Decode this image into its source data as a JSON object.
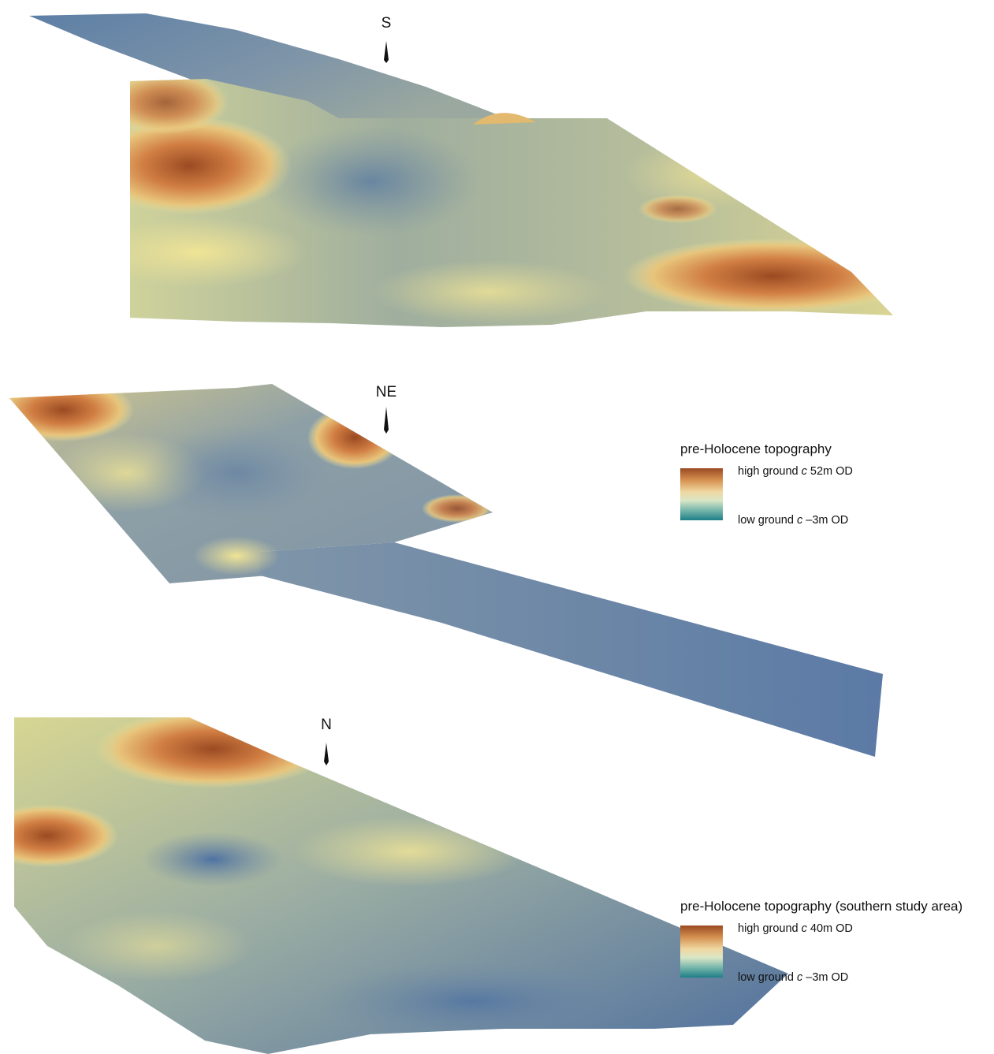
{
  "panels": [
    {
      "id": "panel-top",
      "orientation_label": "S"
    },
    {
      "id": "panel-middle",
      "orientation_label": "NE"
    },
    {
      "id": "panel-bottom",
      "orientation_label": "N"
    }
  ],
  "legends": [
    {
      "title": "pre-Holocene topography",
      "high_prefix": "high ground",
      "high_italic": "c",
      "high_value": "52m OD",
      "low_prefix": "low ground",
      "low_italic": "c",
      "low_value": "–3m OD"
    },
    {
      "title": "pre-Holocene topography (southern study area)",
      "high_prefix": "high ground",
      "high_italic": "c",
      "high_value": "40m OD",
      "low_prefix": "low ground",
      "low_italic": "c",
      "low_value": "–3m OD"
    }
  ],
  "colors": {
    "high": "#9a4a22",
    "upper_mid": "#e0a257",
    "mid": "#e6e19b",
    "lower_mid": "#bccaa0",
    "low_ground": "#6f8aa6",
    "lowest": "#1e7f87",
    "background": "#ffffff"
  }
}
